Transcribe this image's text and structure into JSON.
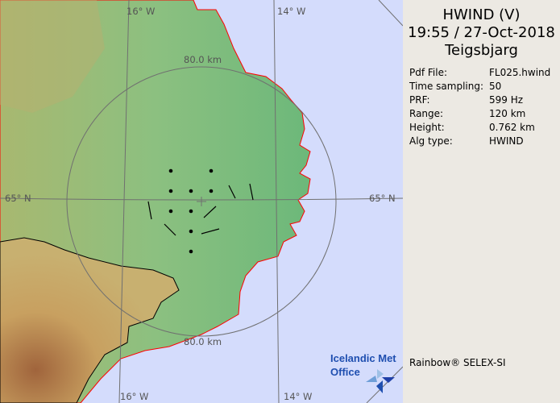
{
  "header": {
    "product": "HWIND (V)",
    "datetime": "19:55 / 27-Oct-2018",
    "site": "Teigsbjarg"
  },
  "info": [
    {
      "key": "Pdf File:",
      "value": "FL025.hwind"
    },
    {
      "key": "Time sampling:",
      "value": "50"
    },
    {
      "key": "PRF:",
      "value": "599 Hz"
    },
    {
      "key": "Range:",
      "value": "120 km"
    },
    {
      "key": "Height:",
      "value": "0.762 km"
    },
    {
      "key": "Alg type:",
      "value": "HWIND"
    }
  ],
  "credit": "Rainbow® SELEX-SI",
  "map": {
    "labels": {
      "lon_16_top": "16° W",
      "lon_14_top": "14° W",
      "lon_16_bottom": "16° W",
      "lon_14_bottom": "14° W",
      "lat_65_left": "65° N",
      "lat_65_right": "65° N",
      "ring_top": "80.0 km",
      "ring_bottom": "80.0 km"
    },
    "logo": {
      "line1": "Icelandic Met",
      "line2": "Office"
    },
    "colors": {
      "sea": "#d4dcfc",
      "lowland": "#7fbf7f",
      "highland": "#c09a5a",
      "coast_outline": "#ff0000",
      "grid": "#707070"
    }
  }
}
